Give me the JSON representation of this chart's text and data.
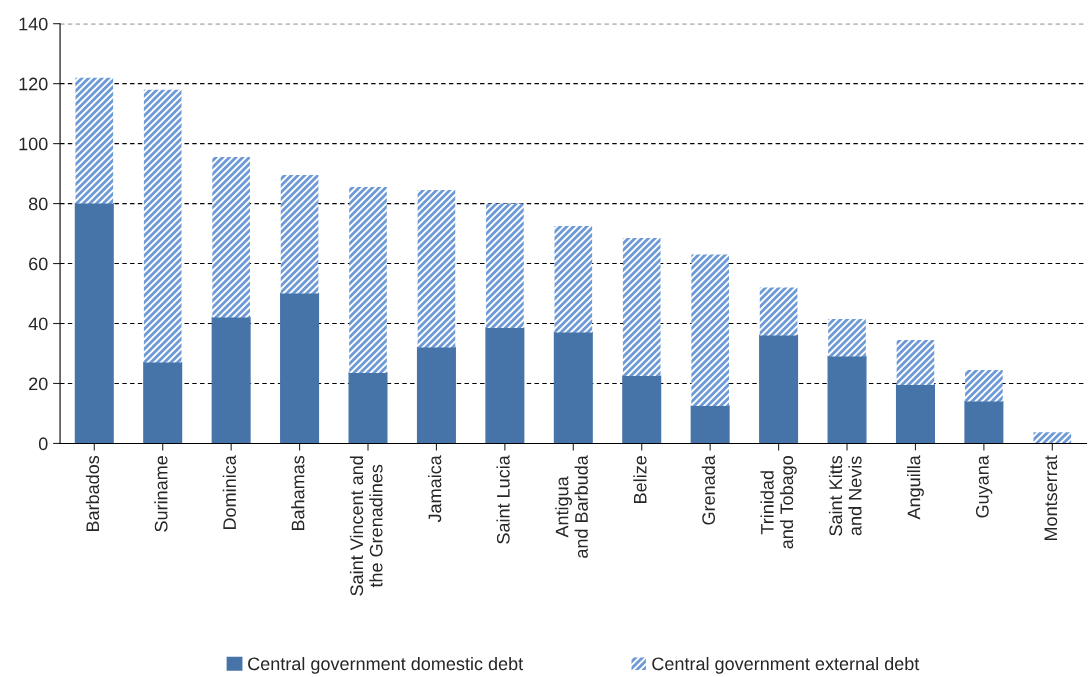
{
  "chart_data": {
    "type": "bar",
    "stacked": true,
    "categories": [
      "Barbados",
      "Suriname",
      "Dominica",
      "Bahamas",
      "Saint Vincent and\nthe Grenadines",
      "Jamaica",
      "Saint Lucia",
      "Antigua\nand Barbuda",
      "Belize",
      "Grenada",
      "Trinidad\nand Tobago",
      "Saint Kitts\nand Nevis",
      "Anguilla",
      "Guyana",
      "Montserrat"
    ],
    "series": [
      {
        "name": "Central government domestic debt",
        "color": "#4674a8",
        "values": [
          80,
          27,
          42,
          50,
          23.5,
          32,
          38.5,
          37,
          22.5,
          12.5,
          36,
          29,
          19.5,
          14,
          0
        ]
      },
      {
        "name": "Central government external debt",
        "color": "#6d9ad6",
        "values": [
          42,
          91,
          53.5,
          39.5,
          62,
          52.5,
          41.5,
          35.5,
          46,
          50.5,
          16,
          12.5,
          15,
          10.5,
          3.7
        ]
      }
    ],
    "ylim": [
      0,
      140
    ],
    "yticks": [
      0,
      20,
      40,
      60,
      80,
      100,
      120,
      140
    ],
    "grid": "y",
    "legend": "bottom"
  }
}
